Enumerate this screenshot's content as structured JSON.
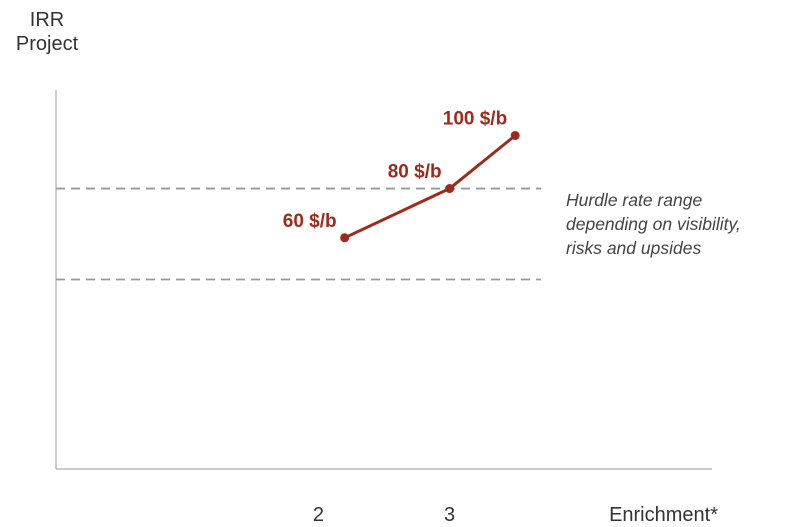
{
  "chart_data": {
    "type": "line",
    "ylabel": [
      "IRR",
      "Project"
    ],
    "xlabel": "Enrichment*",
    "x_ticks": [
      2,
      3
    ],
    "xlim": [
      0,
      5
    ],
    "ylim": [
      0,
      100
    ],
    "grid": false,
    "series": [
      {
        "color": "#9e2a1b",
        "points": [
          {
            "x": 2.2,
            "y": 61,
            "label": "60 $/b"
          },
          {
            "x": 3.0,
            "y": 74,
            "label": "80 $/b"
          },
          {
            "x": 3.5,
            "y": 88,
            "label": "100 $/b"
          }
        ]
      }
    ],
    "reference_band": {
      "y_values": [
        50,
        74
      ],
      "color": "#999999",
      "style": "dashed",
      "annotation": [
        "Hurdle rate range",
        "depending on visibility,",
        "risks and upsides"
      ]
    }
  }
}
